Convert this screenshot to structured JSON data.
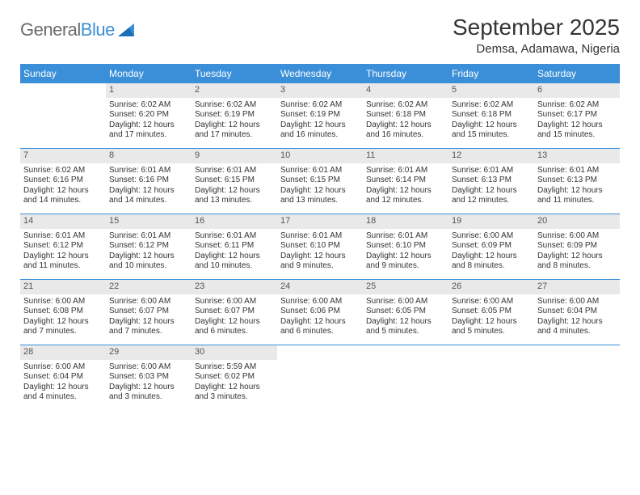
{
  "brand": {
    "part1": "General",
    "part2": "Blue"
  },
  "title": "September 2025",
  "location": "Demsa, Adamawa, Nigeria",
  "colors": {
    "accent": "#3a8fd8",
    "daybar": "#e9e9e9",
    "text": "#333333",
    "background": "#ffffff",
    "logo_gray": "#6b6b6b"
  },
  "dayNames": [
    "Sunday",
    "Monday",
    "Tuesday",
    "Wednesday",
    "Thursday",
    "Friday",
    "Saturday"
  ],
  "weeks": [
    [
      {
        "n": "",
        "empty": true
      },
      {
        "n": "1",
        "sr": "Sunrise: 6:02 AM",
        "ss": "Sunset: 6:20 PM",
        "dl1": "Daylight: 12 hours",
        "dl2": "and 17 minutes."
      },
      {
        "n": "2",
        "sr": "Sunrise: 6:02 AM",
        "ss": "Sunset: 6:19 PM",
        "dl1": "Daylight: 12 hours",
        "dl2": "and 17 minutes."
      },
      {
        "n": "3",
        "sr": "Sunrise: 6:02 AM",
        "ss": "Sunset: 6:19 PM",
        "dl1": "Daylight: 12 hours",
        "dl2": "and 16 minutes."
      },
      {
        "n": "4",
        "sr": "Sunrise: 6:02 AM",
        "ss": "Sunset: 6:18 PM",
        "dl1": "Daylight: 12 hours",
        "dl2": "and 16 minutes."
      },
      {
        "n": "5",
        "sr": "Sunrise: 6:02 AM",
        "ss": "Sunset: 6:18 PM",
        "dl1": "Daylight: 12 hours",
        "dl2": "and 15 minutes."
      },
      {
        "n": "6",
        "sr": "Sunrise: 6:02 AM",
        "ss": "Sunset: 6:17 PM",
        "dl1": "Daylight: 12 hours",
        "dl2": "and 15 minutes."
      }
    ],
    [
      {
        "n": "7",
        "sr": "Sunrise: 6:02 AM",
        "ss": "Sunset: 6:16 PM",
        "dl1": "Daylight: 12 hours",
        "dl2": "and 14 minutes."
      },
      {
        "n": "8",
        "sr": "Sunrise: 6:01 AM",
        "ss": "Sunset: 6:16 PM",
        "dl1": "Daylight: 12 hours",
        "dl2": "and 14 minutes."
      },
      {
        "n": "9",
        "sr": "Sunrise: 6:01 AM",
        "ss": "Sunset: 6:15 PM",
        "dl1": "Daylight: 12 hours",
        "dl2": "and 13 minutes."
      },
      {
        "n": "10",
        "sr": "Sunrise: 6:01 AM",
        "ss": "Sunset: 6:15 PM",
        "dl1": "Daylight: 12 hours",
        "dl2": "and 13 minutes."
      },
      {
        "n": "11",
        "sr": "Sunrise: 6:01 AM",
        "ss": "Sunset: 6:14 PM",
        "dl1": "Daylight: 12 hours",
        "dl2": "and 12 minutes."
      },
      {
        "n": "12",
        "sr": "Sunrise: 6:01 AM",
        "ss": "Sunset: 6:13 PM",
        "dl1": "Daylight: 12 hours",
        "dl2": "and 12 minutes."
      },
      {
        "n": "13",
        "sr": "Sunrise: 6:01 AM",
        "ss": "Sunset: 6:13 PM",
        "dl1": "Daylight: 12 hours",
        "dl2": "and 11 minutes."
      }
    ],
    [
      {
        "n": "14",
        "sr": "Sunrise: 6:01 AM",
        "ss": "Sunset: 6:12 PM",
        "dl1": "Daylight: 12 hours",
        "dl2": "and 11 minutes."
      },
      {
        "n": "15",
        "sr": "Sunrise: 6:01 AM",
        "ss": "Sunset: 6:12 PM",
        "dl1": "Daylight: 12 hours",
        "dl2": "and 10 minutes."
      },
      {
        "n": "16",
        "sr": "Sunrise: 6:01 AM",
        "ss": "Sunset: 6:11 PM",
        "dl1": "Daylight: 12 hours",
        "dl2": "and 10 minutes."
      },
      {
        "n": "17",
        "sr": "Sunrise: 6:01 AM",
        "ss": "Sunset: 6:10 PM",
        "dl1": "Daylight: 12 hours",
        "dl2": "and 9 minutes."
      },
      {
        "n": "18",
        "sr": "Sunrise: 6:01 AM",
        "ss": "Sunset: 6:10 PM",
        "dl1": "Daylight: 12 hours",
        "dl2": "and 9 minutes."
      },
      {
        "n": "19",
        "sr": "Sunrise: 6:00 AM",
        "ss": "Sunset: 6:09 PM",
        "dl1": "Daylight: 12 hours",
        "dl2": "and 8 minutes."
      },
      {
        "n": "20",
        "sr": "Sunrise: 6:00 AM",
        "ss": "Sunset: 6:09 PM",
        "dl1": "Daylight: 12 hours",
        "dl2": "and 8 minutes."
      }
    ],
    [
      {
        "n": "21",
        "sr": "Sunrise: 6:00 AM",
        "ss": "Sunset: 6:08 PM",
        "dl1": "Daylight: 12 hours",
        "dl2": "and 7 minutes."
      },
      {
        "n": "22",
        "sr": "Sunrise: 6:00 AM",
        "ss": "Sunset: 6:07 PM",
        "dl1": "Daylight: 12 hours",
        "dl2": "and 7 minutes."
      },
      {
        "n": "23",
        "sr": "Sunrise: 6:00 AM",
        "ss": "Sunset: 6:07 PM",
        "dl1": "Daylight: 12 hours",
        "dl2": "and 6 minutes."
      },
      {
        "n": "24",
        "sr": "Sunrise: 6:00 AM",
        "ss": "Sunset: 6:06 PM",
        "dl1": "Daylight: 12 hours",
        "dl2": "and 6 minutes."
      },
      {
        "n": "25",
        "sr": "Sunrise: 6:00 AM",
        "ss": "Sunset: 6:05 PM",
        "dl1": "Daylight: 12 hours",
        "dl2": "and 5 minutes."
      },
      {
        "n": "26",
        "sr": "Sunrise: 6:00 AM",
        "ss": "Sunset: 6:05 PM",
        "dl1": "Daylight: 12 hours",
        "dl2": "and 5 minutes."
      },
      {
        "n": "27",
        "sr": "Sunrise: 6:00 AM",
        "ss": "Sunset: 6:04 PM",
        "dl1": "Daylight: 12 hours",
        "dl2": "and 4 minutes."
      }
    ],
    [
      {
        "n": "28",
        "sr": "Sunrise: 6:00 AM",
        "ss": "Sunset: 6:04 PM",
        "dl1": "Daylight: 12 hours",
        "dl2": "and 4 minutes."
      },
      {
        "n": "29",
        "sr": "Sunrise: 6:00 AM",
        "ss": "Sunset: 6:03 PM",
        "dl1": "Daylight: 12 hours",
        "dl2": "and 3 minutes."
      },
      {
        "n": "30",
        "sr": "Sunrise: 5:59 AM",
        "ss": "Sunset: 6:02 PM",
        "dl1": "Daylight: 12 hours",
        "dl2": "and 3 minutes."
      },
      {
        "n": "",
        "empty": true
      },
      {
        "n": "",
        "empty": true
      },
      {
        "n": "",
        "empty": true
      },
      {
        "n": "",
        "empty": true
      }
    ]
  ]
}
